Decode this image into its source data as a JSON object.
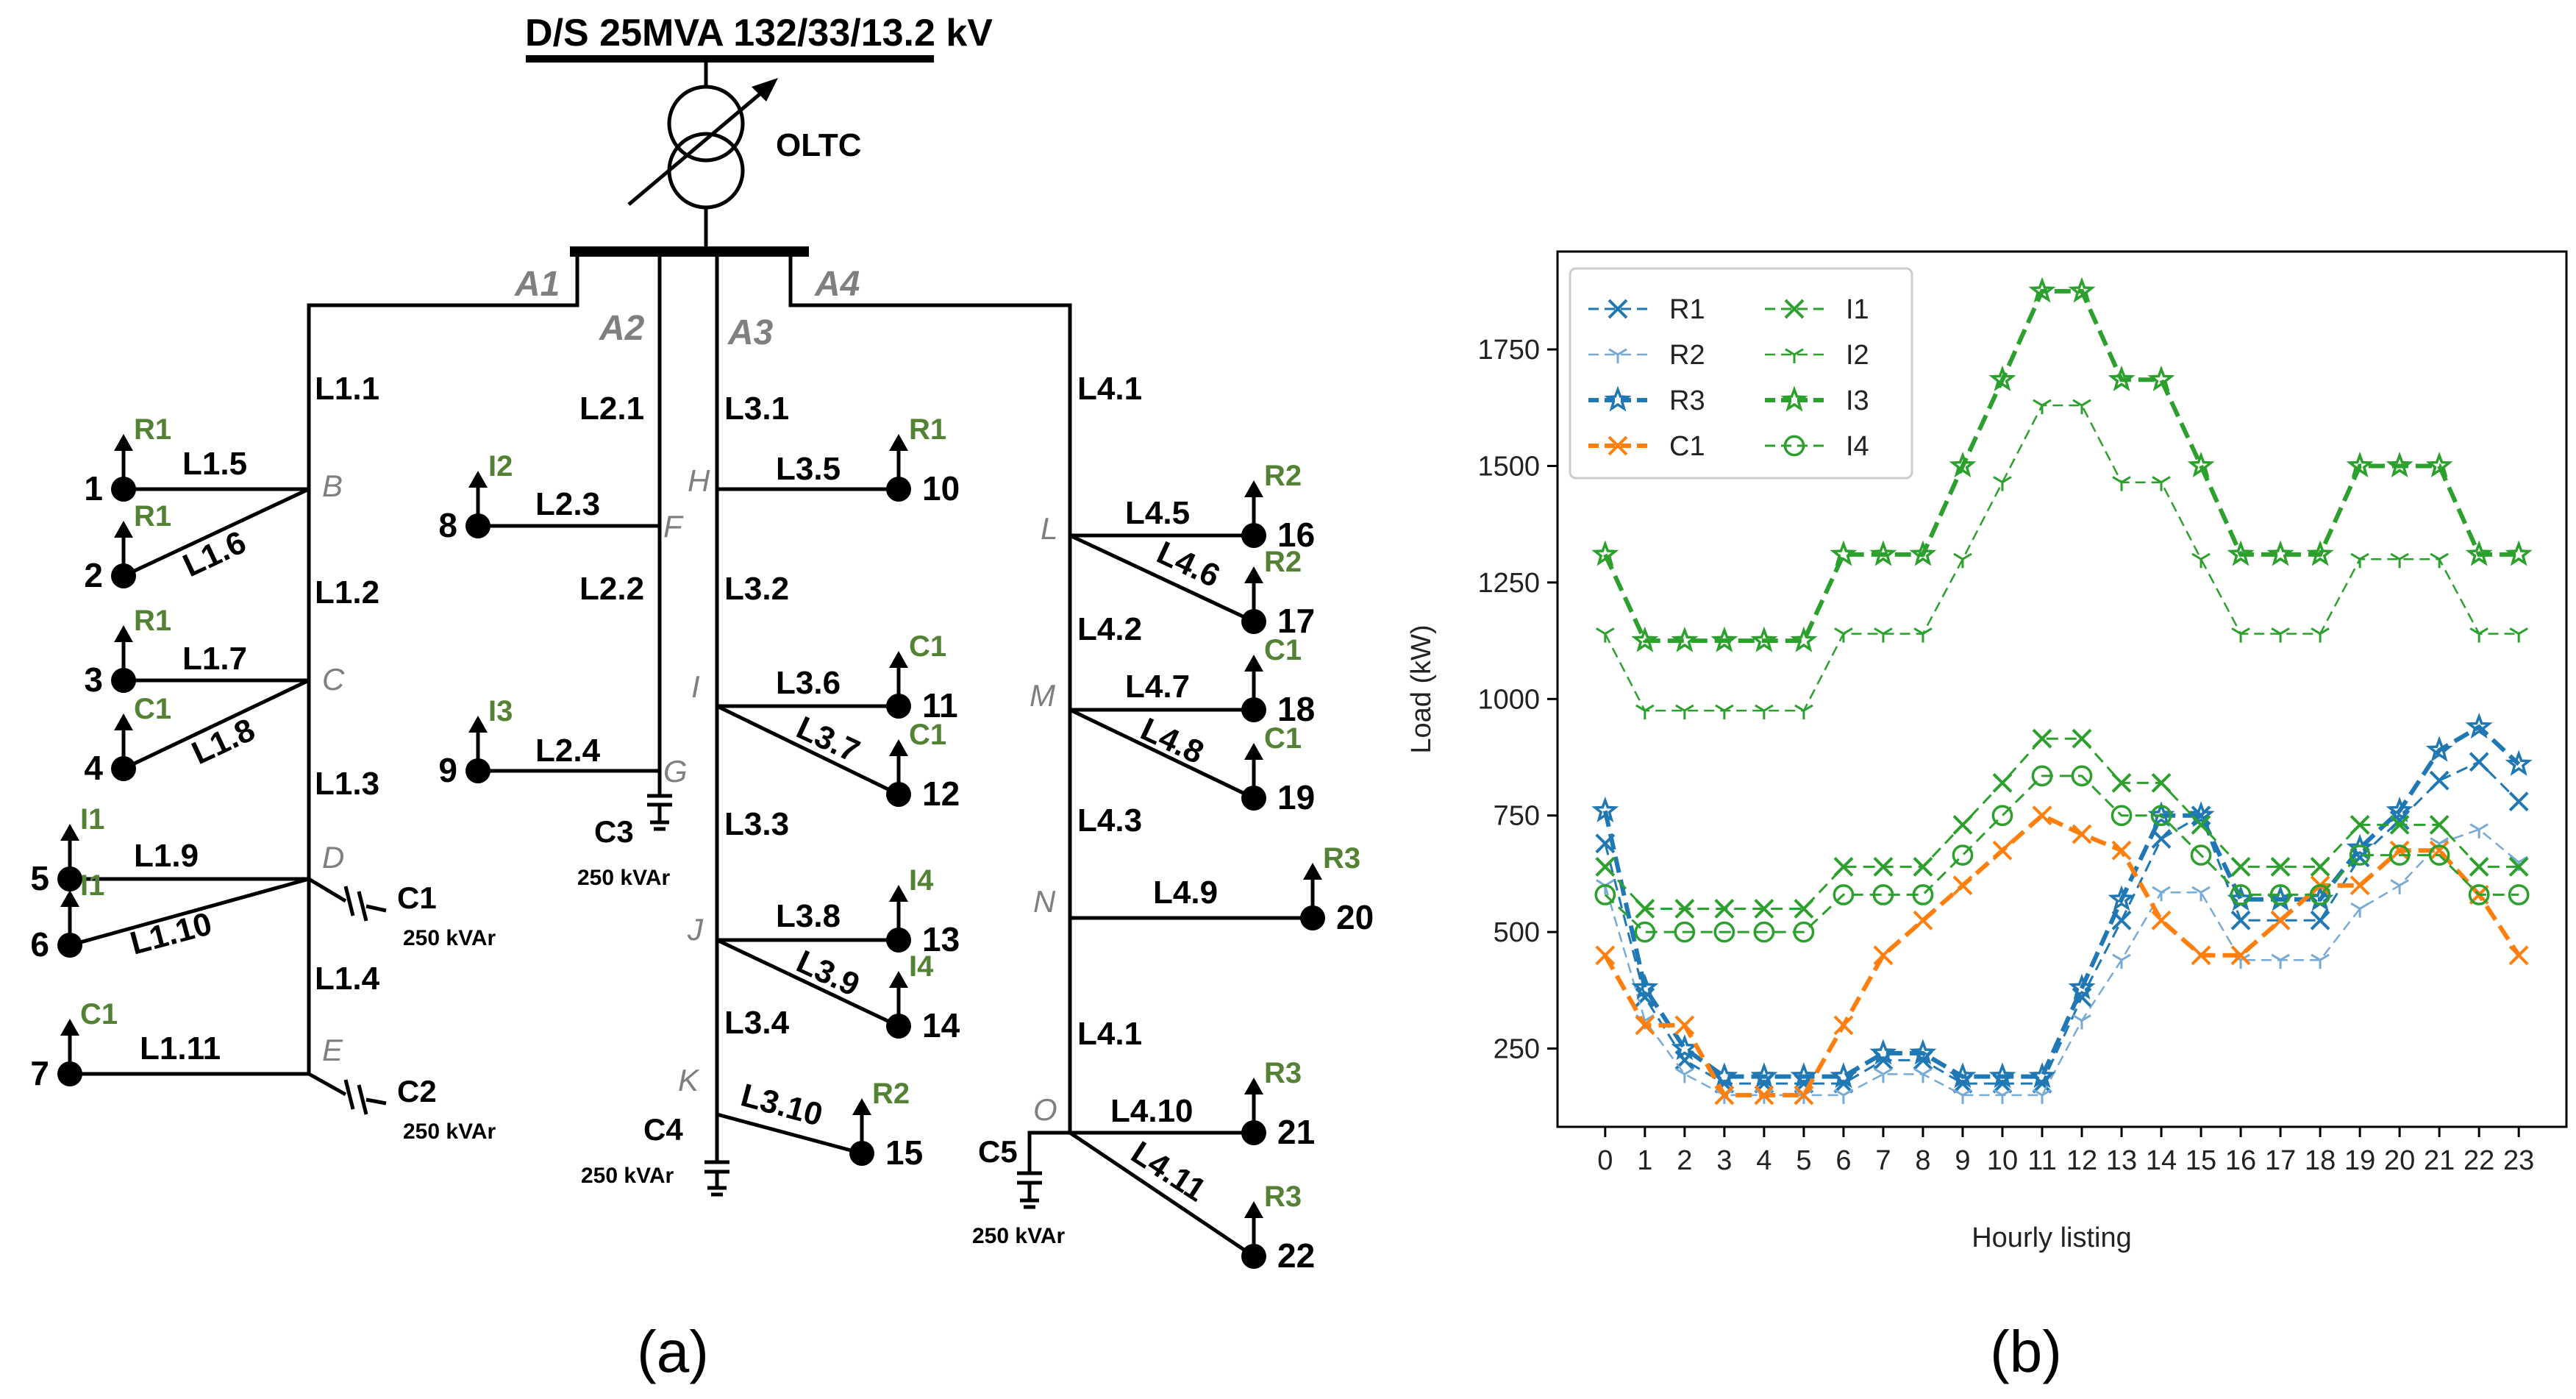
{
  "diagram": {
    "title": "D/S 25MVA 132/33/13.2 kV",
    "oltc": "OLTC",
    "feeders": [
      "A1",
      "A2",
      "A3",
      "A4"
    ],
    "nodes": [
      "B",
      "C",
      "D",
      "E",
      "F",
      "G",
      "H",
      "I",
      "J",
      "K",
      "L",
      "M",
      "N",
      "O"
    ],
    "line_labels": [
      "L1.1",
      "L1.2",
      "L1.3",
      "L1.4",
      "L1.5",
      "L1.6",
      "L1.7",
      "L1.8",
      "L1.9",
      "L1.10",
      "L1.11",
      "L2.1",
      "L2.2",
      "L2.3",
      "L2.4",
      "L3.1",
      "L3.2",
      "L3.3",
      "L3.4",
      "L3.5",
      "L3.6",
      "L3.7",
      "L3.8",
      "L3.9",
      "L3.10",
      "L4.1",
      "L4.2",
      "L4.3",
      "L4.1",
      "L4.5",
      "L4.6",
      "L4.7",
      "L4.8",
      "L4.9",
      "L4.10",
      "L4.11"
    ],
    "buses": [
      "1",
      "2",
      "3",
      "4",
      "5",
      "6",
      "7",
      "8",
      "9",
      "10",
      "11",
      "12",
      "13",
      "14",
      "15",
      "16",
      "17",
      "18",
      "19",
      "20",
      "21",
      "22"
    ],
    "load_types": [
      "R1",
      "R1",
      "R1",
      "C1",
      "I1",
      "I1",
      "C1",
      "I2",
      "I3",
      "R1",
      "C1",
      "C1",
      "I4",
      "I4",
      "R2",
      "R2",
      "R2",
      "C1",
      "C1",
      "R3",
      "R3",
      "R3"
    ],
    "capacitors": [
      "C1",
      "C2",
      "C3",
      "C4",
      "C5"
    ],
    "cap_rating": "250 kVAr",
    "panel_a": "(a)",
    "panel_b": "(b)"
  },
  "chart_data": {
    "type": "line",
    "xlabel": "Hourly listing",
    "ylabel": "Load (kW)",
    "x": [
      0,
      1,
      2,
      3,
      4,
      5,
      6,
      7,
      8,
      9,
      10,
      11,
      12,
      13,
      14,
      15,
      16,
      17,
      18,
      19,
      20,
      21,
      22,
      23
    ],
    "xlim": [
      -1.2,
      24.2
    ],
    "ylim": [
      82,
      1960
    ],
    "yticks": [
      250,
      500,
      750,
      1000,
      1250,
      1500,
      1750
    ],
    "legend": "top-left, 2 columns",
    "series": [
      {
        "name": "R1",
        "color": "#1f77b4",
        "marker": "x",
        "values": [
          690,
          360,
          225,
          175,
          175,
          175,
          175,
          225,
          225,
          175,
          175,
          175,
          360,
          525,
          700,
          750,
          525,
          525,
          525,
          660,
          740,
          825,
          865,
          780
        ]
      },
      {
        "name": "R2",
        "color": "#78aad6",
        "marker": "tri",
        "values": [
          600,
          310,
          195,
          150,
          150,
          150,
          150,
          195,
          195,
          150,
          150,
          150,
          310,
          440,
          585,
          585,
          440,
          440,
          440,
          550,
          600,
          690,
          720,
          650
        ]
      },
      {
        "name": "R3",
        "color": "#1f77b4",
        "marker": "star",
        "values": [
          760,
          380,
          250,
          190,
          190,
          190,
          190,
          240,
          240,
          190,
          190,
          190,
          380,
          570,
          750,
          750,
          570,
          570,
          570,
          680,
          760,
          890,
          940,
          860
        ]
      },
      {
        "name": "C1",
        "color": "#ff7f0e",
        "marker": "x",
        "values": [
          450,
          300,
          300,
          150,
          150,
          150,
          300,
          450,
          525,
          600,
          675,
          750,
          710,
          675,
          525,
          450,
          450,
          525,
          600,
          600,
          675,
          675,
          580,
          450
        ]
      },
      {
        "name": "I1",
        "color": "#2ca02c",
        "marker": "x",
        "values": [
          640,
          550,
          550,
          550,
          550,
          550,
          640,
          640,
          640,
          730,
          820,
          915,
          915,
          820,
          820,
          730,
          640,
          640,
          640,
          730,
          730,
          730,
          640,
          640
        ]
      },
      {
        "name": "I2",
        "color": "#2ca02c",
        "marker": "tri",
        "values": [
          1140,
          975,
          975,
          975,
          975,
          975,
          1140,
          1140,
          1140,
          1300,
          1465,
          1630,
          1630,
          1465,
          1465,
          1300,
          1140,
          1140,
          1140,
          1300,
          1300,
          1300,
          1140,
          1140
        ]
      },
      {
        "name": "I3",
        "color": "#2ca02c",
        "marker": "star",
        "values": [
          1310,
          1125,
          1125,
          1125,
          1125,
          1125,
          1310,
          1310,
          1310,
          1500,
          1685,
          1875,
          1875,
          1685,
          1685,
          1500,
          1310,
          1310,
          1310,
          1500,
          1500,
          1500,
          1310,
          1310
        ]
      },
      {
        "name": "I4",
        "color": "#2ca02c",
        "marker": "circle",
        "values": [
          580,
          500,
          500,
          500,
          500,
          500,
          580,
          580,
          580,
          665,
          750,
          835,
          835,
          750,
          750,
          665,
          580,
          580,
          580,
          665,
          665,
          665,
          580,
          580
        ]
      }
    ]
  }
}
